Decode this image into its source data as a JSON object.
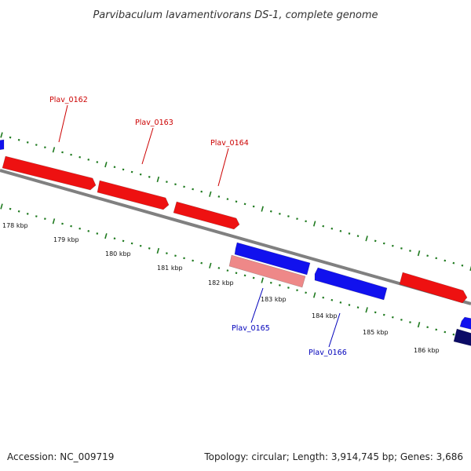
{
  "title": "Parvibaculum lavamentivorans DS-1, complete genome",
  "footer": {
    "accession": "Accession: NC_009719",
    "stats": "Topology: circular; Length: 3,914,745 bp; Genes: 3,686"
  },
  "colors": {
    "forward_gene": "#ee1111",
    "forward_gene_light": "#ee8888",
    "reverse_gene": "#1111ee",
    "reverse_gene_dark": "#0b0b66",
    "backbone": "#808080",
    "ticks": "#1f7a1f",
    "forward_label": "#cc0000",
    "reverse_label": "#0000bb"
  },
  "tick_labels": [
    "178 kbp",
    "179 kbp",
    "180 kbp",
    "181 kbp",
    "182 kbp",
    "183 kbp",
    "184 kbp",
    "185 kbp",
    "186 kbp"
  ],
  "gene_labels": [
    {
      "text": "Plav_0162",
      "strand": "forward"
    },
    {
      "text": "Plav_0163",
      "strand": "forward"
    },
    {
      "text": "Plav_0164",
      "strand": "forward"
    },
    {
      "text": "Plav_0165",
      "strand": "reverse"
    },
    {
      "text": "Plav_0166",
      "strand": "reverse"
    }
  ]
}
